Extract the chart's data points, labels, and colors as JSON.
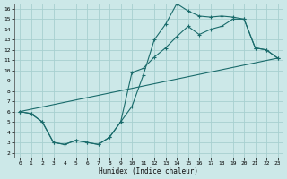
{
  "background_color": "#cce8e8",
  "grid_color": "#a8d0d0",
  "line_color": "#1a6b6b",
  "xlabel": "Humidex (Indice chaleur)",
  "xlim": [
    -0.5,
    23.5
  ],
  "ylim": [
    1.5,
    16.5
  ],
  "xticks": [
    0,
    1,
    2,
    3,
    4,
    5,
    6,
    7,
    8,
    9,
    10,
    11,
    12,
    13,
    14,
    15,
    16,
    17,
    18,
    19,
    20,
    21,
    22,
    23
  ],
  "yticks": [
    2,
    3,
    4,
    5,
    6,
    7,
    8,
    9,
    10,
    11,
    12,
    13,
    14,
    15,
    16
  ],
  "curve1_x": [
    0,
    1,
    2,
    3,
    4,
    5,
    6,
    7,
    8,
    9,
    10,
    11,
    12,
    13,
    14,
    15,
    16,
    17,
    18,
    19,
    20,
    21,
    22,
    23
  ],
  "curve1_y": [
    6.0,
    5.8,
    5.0,
    3.0,
    2.8,
    3.2,
    3.0,
    2.8,
    3.5,
    5.0,
    6.5,
    9.5,
    13.0,
    14.5,
    16.5,
    15.8,
    15.3,
    15.2,
    15.3,
    15.2,
    15.0,
    12.2,
    12.0,
    11.2
  ],
  "curve2_x": [
    0,
    1,
    2,
    3,
    4,
    5,
    6,
    7,
    8,
    9,
    10,
    11,
    12,
    13,
    14,
    15,
    16,
    17,
    18,
    19,
    20,
    21,
    22,
    23
  ],
  "curve2_y": [
    6.0,
    5.8,
    5.0,
    3.0,
    2.8,
    3.2,
    3.0,
    2.8,
    3.5,
    5.0,
    9.8,
    10.2,
    11.3,
    12.2,
    13.3,
    14.3,
    13.5,
    14.0,
    14.3,
    15.0,
    15.0,
    12.2,
    12.0,
    11.2
  ],
  "line_x": [
    0,
    23
  ],
  "line_y": [
    6.0,
    11.2
  ]
}
